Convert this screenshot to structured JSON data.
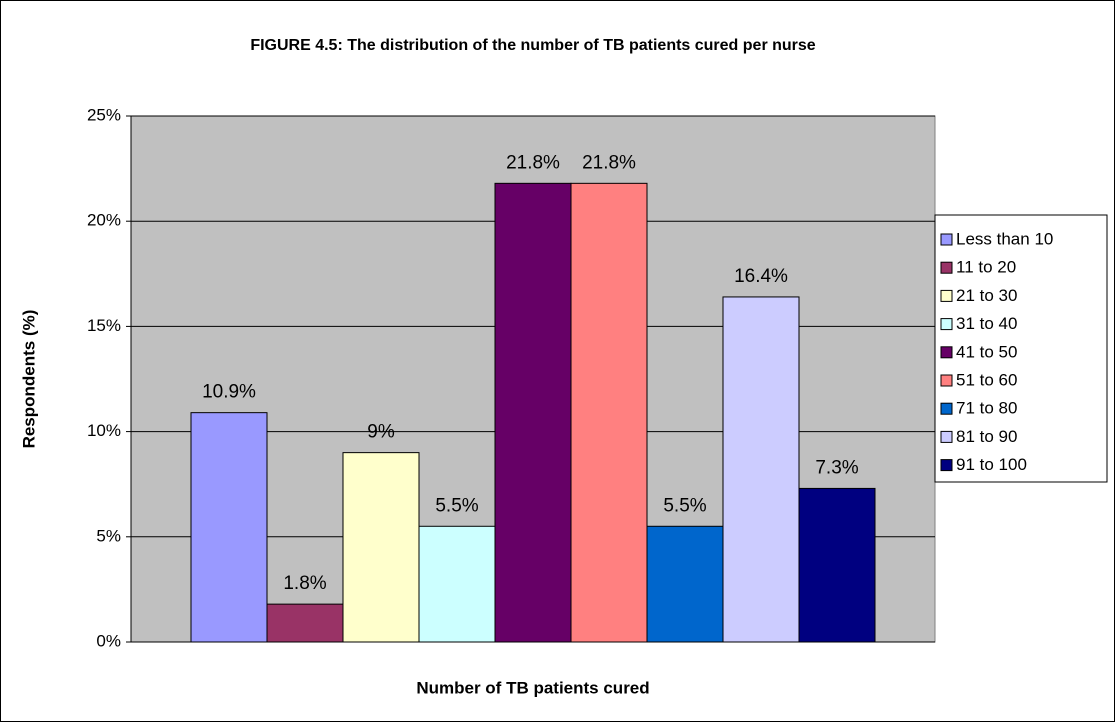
{
  "chart_data": {
    "type": "bar",
    "title": "FIGURE 4.5: The distribution of the number of TB patients cured per nurse",
    "x_label": "Number of TB patients cured",
    "y_label": "Respondents (%)",
    "categories": [
      null
    ],
    "series": [
      {
        "name": "Less than 10",
        "color": "#9999ff",
        "values": [
          10.9
        ],
        "value_labels": [
          "10.9%"
        ]
      },
      {
        "name": "11 to 20",
        "color": "#993366",
        "values": [
          1.8
        ],
        "value_labels": [
          "1.8%"
        ]
      },
      {
        "name": "21 to 30",
        "color": "#ffffcc",
        "values": [
          9
        ],
        "value_labels": [
          "9%"
        ]
      },
      {
        "name": "31 to 40",
        "color": "#ccffff",
        "values": [
          5.5
        ],
        "value_labels": [
          "5.5%"
        ]
      },
      {
        "name": "41 to 50",
        "color": "#660066",
        "values": [
          21.8
        ],
        "value_labels": [
          "21.8%"
        ]
      },
      {
        "name": "51 to 60",
        "color": "#ff8080",
        "values": [
          21.8
        ],
        "value_labels": [
          "21.8%"
        ]
      },
      {
        "name": "71 to 80",
        "color": "#0066cc",
        "values": [
          5.5
        ],
        "value_labels": [
          "5.5%"
        ]
      },
      {
        "name": "81 to 90",
        "color": "#ccccff",
        "values": [
          16.4
        ],
        "value_labels": [
          "16.4%"
        ]
      },
      {
        "name": "91 to 100",
        "color": "#000080",
        "values": [
          7.3
        ],
        "value_labels": [
          "7.3%"
        ]
      }
    ],
    "ylim": [
      0,
      25
    ],
    "yticks": [
      {
        "value": 0,
        "label": "0%"
      },
      {
        "value": 5,
        "label": "5%"
      },
      {
        "value": 10,
        "label": "10%"
      },
      {
        "value": 15,
        "label": "15%"
      },
      {
        "value": 20,
        "label": "20%"
      },
      {
        "value": 25,
        "label": "25%"
      }
    ],
    "grid": true,
    "legend": "right"
  }
}
